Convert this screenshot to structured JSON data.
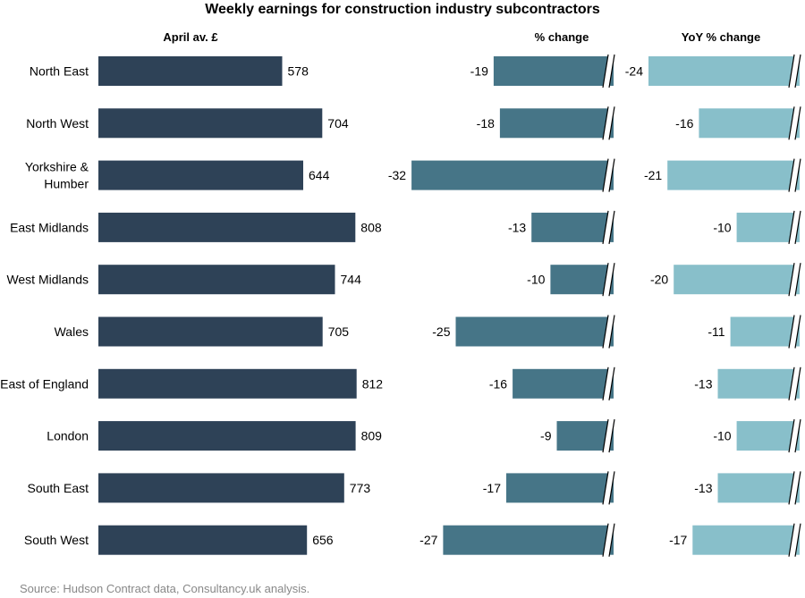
{
  "chart_data": {
    "type": "bar",
    "orientation": "horizontal",
    "title": "Weekly earnings for construction industry subcontractors",
    "source": "Source: Hudson Contract data, Consultancy.uk analysis.",
    "categories": [
      [
        "North East"
      ],
      [
        "North West"
      ],
      [
        "Yorkshire &",
        "Humber"
      ],
      [
        "East Midlands"
      ],
      [
        "West Midlands"
      ],
      [
        "Wales"
      ],
      [
        "East of England"
      ],
      [
        "London"
      ],
      [
        "South East"
      ],
      [
        "South West"
      ]
    ],
    "series": [
      {
        "name": "April av. £",
        "values": [
          578,
          704,
          644,
          808,
          744,
          705,
          812,
          809,
          773,
          656
        ],
        "axis_start": 0,
        "axis_end": 810,
        "color": "#2e4257",
        "broken_axis": false
      },
      {
        "name": "% change",
        "values": [
          -19,
          -18,
          -32,
          -13,
          -10,
          -25,
          -16,
          -9,
          -17,
          -27
        ],
        "axis_start": 0,
        "axis_end": -34,
        "color": "#467587",
        "broken_axis": true
      },
      {
        "name": "YoY % change",
        "values": [
          -24,
          -16,
          -21,
          -10,
          -20,
          -11,
          -13,
          -10,
          -13,
          -17
        ],
        "axis_start": 0,
        "axis_end": -25,
        "color": "#88bfca",
        "broken_axis": true
      }
    ],
    "colors": {
      "text": "#000000",
      "source": "#888888",
      "break_fill": "#ffffff",
      "break_stroke": "#000000"
    }
  }
}
